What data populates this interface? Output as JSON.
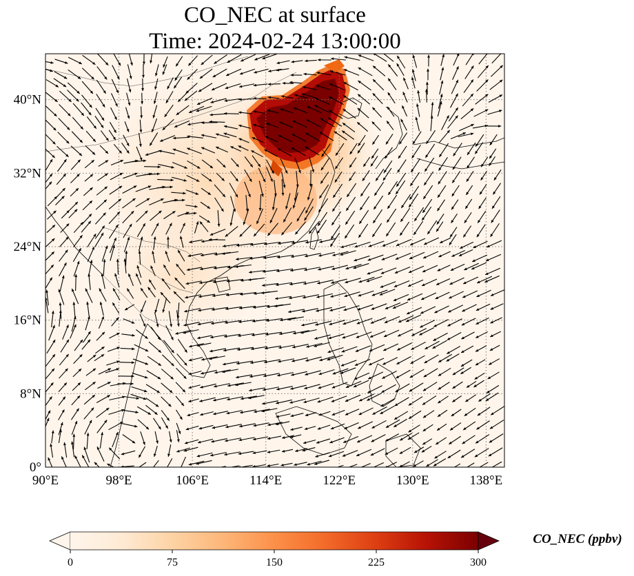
{
  "title": {
    "line1": "CO_NEC at surface",
    "line2": "Time: 2024-02-24 13:00:00"
  },
  "map": {
    "lon_range": [
      90,
      140
    ],
    "lat_range": [
      0,
      45
    ],
    "lon_ticks": [
      {
        "value": 90,
        "label": "90°E"
      },
      {
        "value": 98,
        "label": "98°E"
      },
      {
        "value": 106,
        "label": "106°E"
      },
      {
        "value": 114,
        "label": "114°E"
      },
      {
        "value": 122,
        "label": "122°E"
      },
      {
        "value": 130,
        "label": "130°E"
      },
      {
        "value": 138,
        "label": "138°E"
      }
    ],
    "lat_ticks": [
      {
        "value": 0,
        "label": "0°"
      },
      {
        "value": 8,
        "label": "8°N"
      },
      {
        "value": 16,
        "label": "16°N"
      },
      {
        "value": 24,
        "label": "24°N"
      },
      {
        "value": 32,
        "label": "32°N"
      },
      {
        "value": 40,
        "label": "40°N"
      }
    ],
    "gridlines": "dotted",
    "background_color": "#fff5eb",
    "vector_color": "#000000",
    "coastline_color": "#000000"
  },
  "colorbar": {
    "label": "CO_NEC (ppbv)",
    "ticks": [
      "0",
      "75",
      "150",
      "225",
      "300"
    ],
    "range": [
      0,
      300
    ],
    "extend": "both",
    "colormap": "OrRd-like",
    "colors": [
      "#fff5eb",
      "#fee6ce",
      "#fdd0a2",
      "#fdae6b",
      "#fd8d3c",
      "#f16913",
      "#d94801",
      "#a63603",
      "#7f2704",
      "#67000d"
    ]
  }
}
